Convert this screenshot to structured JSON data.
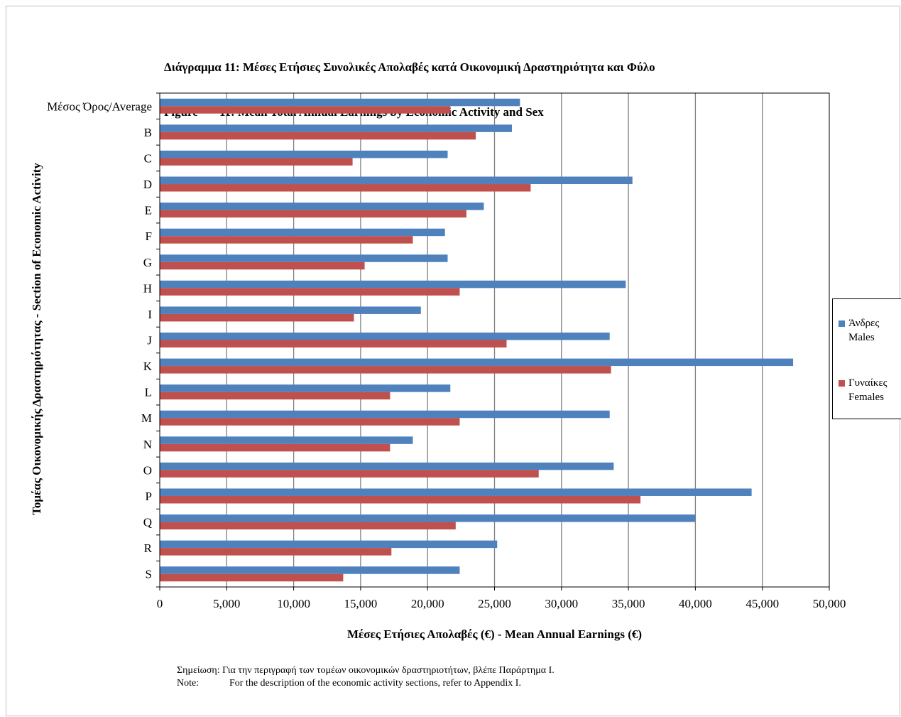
{
  "title": {
    "line1": "Διάγραμμα 11: Μέσες Ετήσιες Συνολικές Απολαβές κατά Οικονομική Δραστηριότητα και Φύλο",
    "line2_label": "Figure",
    "line2_text": "11: Mean Total Annual Earnings by Economic Activity and Sex"
  },
  "note": {
    "label_gr": "Σημείωση:",
    "text_gr": "Για την περιγραφή των τομέων οικονομικών δραστηριοτήτων, βλέπε Παράρτημα Ι.",
    "label_en": "Note:",
    "text_en": "For the description of the economic activity sections, refer to Appendix I."
  },
  "colors": {
    "males": "#4f81bd",
    "females": "#c0504d",
    "grid": "#808080"
  },
  "chart_data": {
    "type": "bar",
    "orientation": "horizontal",
    "categories": [
      "Μέσος Όρος/Average",
      "B",
      "C",
      "D",
      "E",
      "F",
      "G",
      "H",
      "I",
      "J",
      "K",
      "L",
      "M",
      "N",
      "O",
      "P",
      "Q",
      "R",
      "S"
    ],
    "series": [
      {
        "name": "Άνδρες Males",
        "name_gr": "Άνδρες",
        "name_en": "Males",
        "values": [
          26900,
          26300,
          21500,
          35300,
          24200,
          21300,
          21500,
          34800,
          19500,
          33600,
          47300,
          21700,
          33600,
          18900,
          33900,
          44200,
          40000,
          25200,
          22400
        ]
      },
      {
        "name": "Γυναίκες Females",
        "name_gr": "Γυναίκες",
        "name_en": "Females",
        "values": [
          21700,
          23600,
          14400,
          27700,
          22900,
          18900,
          15300,
          22400,
          14500,
          25900,
          33700,
          17200,
          22400,
          17200,
          28300,
          35900,
          22100,
          17300,
          13700
        ]
      }
    ],
    "xlabel": "Μέσες Ετήσιες Απολαβές (€) - Mean Annual Earnings (€)",
    "ylabel": "Τομέας Οικονομικής Δραστηριότητας - Section of Economic Activity",
    "xlim": [
      0,
      50000
    ],
    "xticks": [
      0,
      5000,
      10000,
      15000,
      20000,
      25000,
      30000,
      35000,
      40000,
      45000,
      50000
    ],
    "xtick_labels": [
      "0",
      "5,000",
      "10,000",
      "15,000",
      "20,000",
      "25,000",
      "30,000",
      "35,000",
      "40,000",
      "45,000",
      "50,000"
    ],
    "grid": "vertical",
    "legend_position": "right"
  }
}
